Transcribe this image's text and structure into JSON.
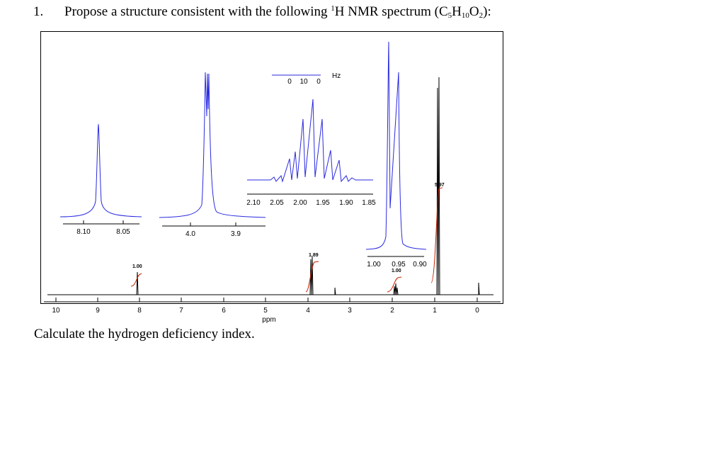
{
  "question": {
    "number": "1.",
    "text_before": "Propose a structure consistent with the following ",
    "nucleus_mass": "1",
    "nucleus_symbol": "H",
    "text_mid": " NMR spectrum (C",
    "sub_c": "5",
    "h_label": "H",
    "sub_h": "10",
    "o_label": "O",
    "sub_o": "2",
    "text_end": "):"
  },
  "footer": {
    "text": "Calculate the hydrogen deficiency index."
  },
  "spectrum": {
    "x_axis": {
      "label": "ppm",
      "ticks": [
        "10",
        "9",
        "8",
        "7",
        "6",
        "5",
        "4",
        "3",
        "2",
        "1",
        "0"
      ]
    },
    "integrals": [
      "1.00",
      "1.89",
      "1.00",
      "5.97"
    ],
    "insets": [
      {
        "ticks": [
          "8.10",
          "8.05"
        ]
      },
      {
        "ticks": [
          "4.0",
          "3.9"
        ]
      },
      {
        "ticks": [
          "2.10",
          "2.05",
          "2.00",
          "1.95",
          "1.90",
          "1.85"
        ],
        "scale_ticks": [
          "0",
          "10",
          "0"
        ],
        "scale_unit": "Hz"
      },
      {
        "ticks": [
          "1.00",
          "0.95",
          "0.90"
        ]
      }
    ],
    "colors": {
      "inset_trace": "#2a2ae0",
      "main_trace": "#000000",
      "integral": "#cc2200"
    }
  }
}
